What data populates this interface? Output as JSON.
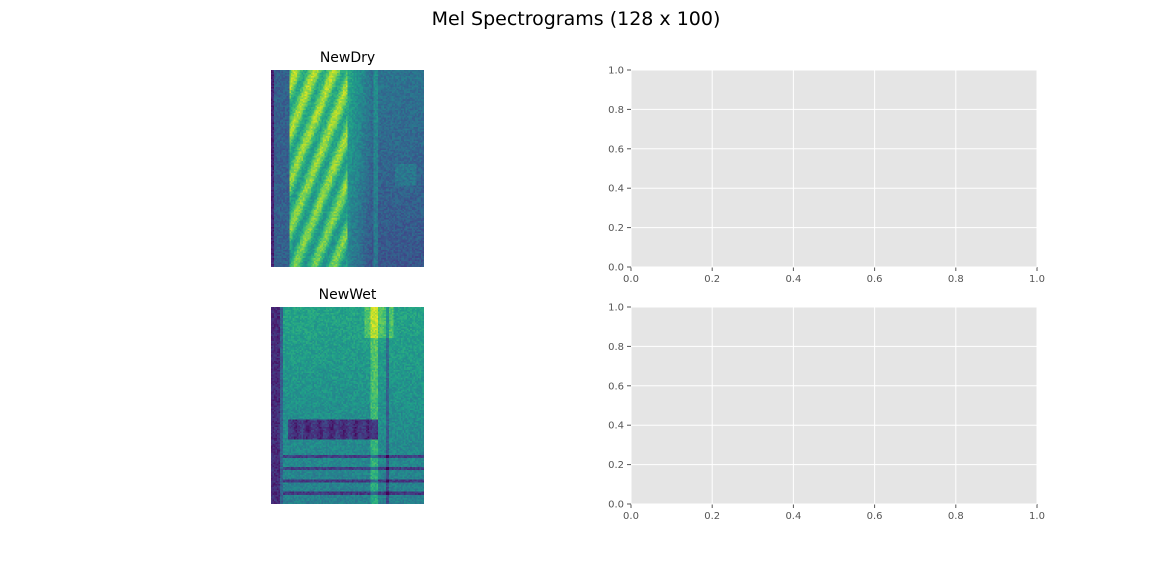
{
  "figure": {
    "title": "Mel Spectrograms (128 x 100)"
  },
  "spectrograms": [
    {
      "title": "NewDry",
      "shape": [
        128,
        100
      ],
      "colormap": "viridis",
      "axes_visible": false
    },
    {
      "title": "NewWet",
      "shape": [
        128,
        100
      ],
      "colormap": "viridis",
      "axes_visible": false
    }
  ],
  "chart_data": [
    {
      "type": "heatmap",
      "title": "NewDry",
      "shape": [
        128,
        100
      ],
      "colormap": "viridis"
    },
    {
      "type": "scatter",
      "title": "",
      "series": [],
      "xlim": [
        0,
        1
      ],
      "ylim": [
        0,
        1
      ],
      "xticks": [
        "0.0",
        "0.2",
        "0.4",
        "0.6",
        "0.8",
        "1.0"
      ],
      "yticks": [
        "0.0",
        "0.2",
        "0.4",
        "0.6",
        "0.8",
        "1.0"
      ],
      "grid": true,
      "facecolor": "#e5e5e5"
    },
    {
      "type": "heatmap",
      "title": "NewWet",
      "shape": [
        128,
        100
      ],
      "colormap": "viridis"
    },
    {
      "type": "scatter",
      "title": "",
      "series": [],
      "xlim": [
        0,
        1
      ],
      "ylim": [
        0,
        1
      ],
      "xticks": [
        "0.0",
        "0.2",
        "0.4",
        "0.6",
        "0.8",
        "1.0"
      ],
      "yticks": [
        "0.0",
        "0.2",
        "0.4",
        "0.6",
        "0.8",
        "1.0"
      ],
      "grid": true,
      "facecolor": "#e5e5e5"
    }
  ],
  "empty_axes": [
    {
      "xticks": [
        "0.0",
        "0.2",
        "0.4",
        "0.6",
        "0.8",
        "1.0"
      ],
      "yticks": [
        "0.0",
        "0.2",
        "0.4",
        "0.6",
        "0.8",
        "1.0"
      ]
    },
    {
      "xticks": [
        "0.0",
        "0.2",
        "0.4",
        "0.6",
        "0.8",
        "1.0"
      ],
      "yticks": [
        "0.0",
        "0.2",
        "0.4",
        "0.6",
        "0.8",
        "1.0"
      ]
    }
  ],
  "colors": {
    "axes_face": "#e5e5e5",
    "grid": "#ffffff",
    "tick_text": "#555555"
  }
}
